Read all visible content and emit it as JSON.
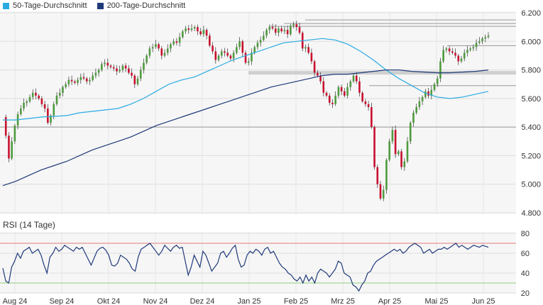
{
  "legend": {
    "sma50_label": "50-Tage-Durchschnitt",
    "sma200_label": "200-Tage-Durchschnitt"
  },
  "rsi_title": "RSI (14 Tage)",
  "colors": {
    "sma50": "#29abe2",
    "sma200": "#1f3a7a",
    "up": "#4e9a3e",
    "down": "#c8102e",
    "rsi": "#1f3a7a",
    "rsi_upper": "#e07b7b",
    "rsi_lower": "#8fcf7a"
  },
  "chart_data": [
    {
      "type": "candlestick",
      "y_ticks": [
        "6.200",
        "6.000",
        "5.800",
        "5.600",
        "5.400",
        "5.200",
        "5.000",
        "4.800"
      ],
      "ylim": [
        4800,
        6200
      ],
      "x_ticks": [
        "Aug 24",
        "Sep 24",
        "Okt 24",
        "Nov 24",
        "Dez 24",
        "Jan 25",
        "Feb 25",
        "Mrz 25",
        "Apr 25",
        "Mai 25",
        "Jun 25"
      ],
      "grid": true,
      "legend_position": "top-left",
      "horizontal_levels": [
        6150,
        6125,
        6105,
        5970,
        5780,
        5690,
        5400
      ],
      "price_path": [
        5470,
        5340,
        5180,
        5300,
        5410,
        5490,
        5530,
        5570,
        5580,
        5610,
        5640,
        5620,
        5600,
        5560,
        5530,
        5430,
        5480,
        5560,
        5620,
        5640,
        5680,
        5700,
        5730,
        5720,
        5710,
        5730,
        5750,
        5740,
        5720,
        5730,
        5760,
        5780,
        5800,
        5840,
        5850,
        5830,
        5820,
        5810,
        5790,
        5800,
        5830,
        5810,
        5780,
        5760,
        5700,
        5740,
        5800,
        5850,
        5900,
        5950,
        5960,
        5980,
        5950,
        5900,
        5920,
        5950,
        5980,
        6000,
        5990,
        6030,
        6070,
        6090,
        6080,
        6090,
        6100,
        6070,
        6050,
        6080,
        6040,
        5970,
        5930,
        5870,
        5900,
        5930,
        5920,
        5900,
        5880,
        5920,
        5960,
        6000,
        5920,
        5850,
        5860,
        5920,
        5960,
        5990,
        6010,
        6040,
        6080,
        6100,
        6090,
        6060,
        6090,
        6070,
        6080,
        6050,
        6110,
        6120,
        6100,
        6060,
        5950,
        5960,
        5920,
        5860,
        5780,
        5760,
        5720,
        5640,
        5620,
        5570,
        5560,
        5620,
        5680,
        5650,
        5620,
        5680,
        5720,
        5760,
        5720,
        5640,
        5580,
        5560,
        5540,
        5400,
        5120,
        5000,
        4900,
        4960,
        5170,
        5300,
        5380,
        5210,
        5230,
        5120,
        5160,
        5300,
        5430,
        5500,
        5540,
        5580,
        5610,
        5650,
        5620,
        5660,
        5700,
        5740,
        5860,
        5940,
        5950,
        5930,
        5920,
        5900,
        5860,
        5880,
        5920,
        5940,
        5950,
        5960,
        5990,
        6000,
        6020,
        6030,
        6040
      ],
      "series": [
        {
          "name": "50-Tage-Durchschnitt",
          "values": [
            5450,
            5450,
            5460,
            5470,
            5475,
            5480,
            5500,
            5510,
            5520,
            5530,
            5560,
            5600,
            5650,
            5700,
            5730,
            5750,
            5790,
            5830,
            5870,
            5900,
            5930,
            5960,
            5990,
            6000,
            6010,
            6020,
            6010,
            5980,
            5930,
            5870,
            5800,
            5740,
            5690,
            5640,
            5610,
            5600,
            5610,
            5630,
            5650
          ]
        },
        {
          "name": "200-Tage-Durchschnitt",
          "values": [
            4990,
            5020,
            5060,
            5100,
            5130,
            5160,
            5200,
            5240,
            5270,
            5300,
            5330,
            5370,
            5410,
            5440,
            5470,
            5500,
            5530,
            5560,
            5590,
            5620,
            5650,
            5680,
            5700,
            5720,
            5740,
            5760,
            5770,
            5770,
            5780,
            5790,
            5800,
            5800,
            5790,
            5785,
            5780,
            5780,
            5785,
            5790,
            5800
          ]
        }
      ]
    },
    {
      "type": "line",
      "name": "RSI (14 Tage)",
      "y_ticks": [
        "80",
        "60",
        "40",
        "20"
      ],
      "ylim": [
        20,
        80
      ],
      "reference_lines": [
        70,
        30
      ],
      "values": [
        45,
        32,
        30,
        46,
        52,
        60,
        55,
        62,
        64,
        66,
        60,
        62,
        64,
        58,
        48,
        40,
        56,
        60,
        66,
        62,
        64,
        68,
        66,
        64,
        62,
        66,
        64,
        66,
        60,
        54,
        48,
        55,
        62,
        65,
        66,
        63,
        58,
        48,
        47,
        50,
        58,
        56,
        54,
        50,
        44,
        42,
        56,
        64,
        66,
        68,
        70,
        66,
        62,
        58,
        62,
        68,
        65,
        62,
        66,
        68,
        65,
        66,
        52,
        38,
        46,
        58,
        52,
        46,
        62,
        58,
        50,
        42,
        46,
        50,
        60,
        62,
        56,
        60,
        65,
        68,
        54,
        46,
        48,
        58,
        62,
        60,
        64,
        62,
        58,
        64,
        66,
        60,
        62,
        56,
        50,
        46,
        44,
        40,
        38,
        34,
        32,
        36,
        30,
        38,
        32,
        36,
        30,
        40,
        44,
        42,
        40,
        36,
        40,
        44,
        52,
        50,
        40,
        38,
        36,
        28,
        26,
        22,
        28,
        32,
        40,
        42,
        48,
        52,
        54,
        56,
        58,
        60,
        62,
        64,
        62,
        64,
        60,
        62,
        66,
        68,
        70,
        68,
        66,
        60,
        62,
        64,
        60,
        62,
        64,
        64,
        66,
        64,
        66,
        68,
        70,
        66,
        68,
        66,
        64,
        66,
        68,
        67,
        66,
        68,
        67,
        66
      ]
    }
  ]
}
